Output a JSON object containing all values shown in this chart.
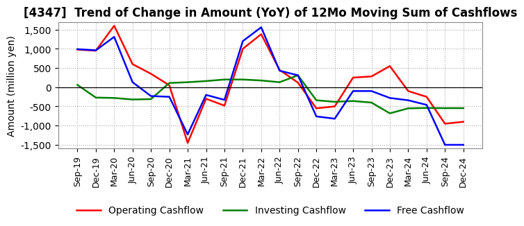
{
  "title": "[4347]  Trend of Change in Amount (YoY) of 12Mo Moving Sum of Cashflows",
  "ylabel": "Amount (million yen)",
  "x_labels": [
    "Sep-19",
    "Dec-19",
    "Mar-20",
    "Jun-20",
    "Sep-20",
    "Dec-20",
    "Mar-21",
    "Jun-21",
    "Sep-21",
    "Dec-21",
    "Mar-22",
    "Jun-22",
    "Sep-22",
    "Dec-22",
    "Mar-23",
    "Jun-23",
    "Sep-23",
    "Dec-23",
    "Mar-24",
    "Jun-24",
    "Sep-24",
    "Dec-24"
  ],
  "operating": [
    980,
    950,
    1600,
    600,
    350,
    50,
    -1450,
    -300,
    -480,
    1000,
    1380,
    450,
    120,
    -550,
    -500,
    250,
    280,
    550,
    -100,
    -250,
    -950,
    -900
  ],
  "investing": [
    60,
    -270,
    -280,
    -320,
    -310,
    110,
    130,
    160,
    200,
    200,
    175,
    130,
    310,
    -340,
    -380,
    -360,
    -400,
    -680,
    -550,
    -540,
    -545,
    -545
  ],
  "free": [
    990,
    960,
    1310,
    130,
    -230,
    -250,
    -1230,
    -200,
    -330,
    1200,
    1560,
    430,
    310,
    -760,
    -820,
    -100,
    -100,
    -280,
    -340,
    -460,
    -1500,
    -1500
  ],
  "ylim": [
    -1600,
    1700
  ],
  "yticks": [
    -1500,
    -1000,
    -500,
    0,
    500,
    1000,
    1500
  ],
  "operating_color": "#FF0000",
  "investing_color": "#008000",
  "free_color": "#0000FF",
  "bg_color": "#FFFFFF",
  "grid_color": "#AAAAAA",
  "title_fontsize": 12,
  "axis_fontsize": 9,
  "legend_fontsize": 10,
  "linewidth": 1.8
}
